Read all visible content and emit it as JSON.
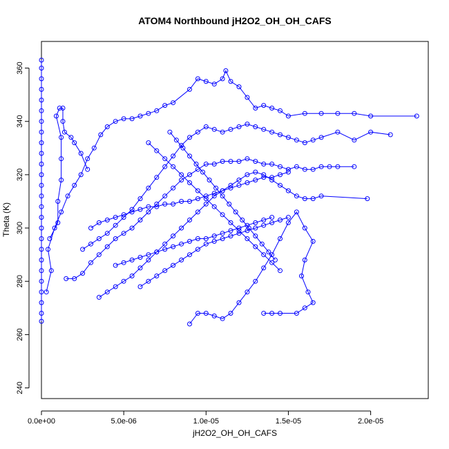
{
  "chart_data": {
    "type": "line",
    "title": "ATOM4 Northbound jH2O2_OH_OH_CAFS",
    "xlabel": "jH2O2_OH_OH_CAFS",
    "ylabel": "Theta (K)",
    "xlim": [
      0,
      2.35e-05
    ],
    "ylim": [
      236,
      370
    ],
    "x_ticks": [
      0,
      5e-06,
      1e-05,
      1.5e-05,
      2e-05
    ],
    "x_tick_labels": [
      "0.0e+00",
      "5.0e-06",
      "1.0e-05",
      "1.5e-05",
      "2.0e-05"
    ],
    "y_ticks": [
      240,
      260,
      280,
      300,
      320,
      340,
      360
    ],
    "y_tick_labels": [
      "240",
      "260",
      "280",
      "300",
      "320",
      "340",
      "360"
    ],
    "marker": "open-circle",
    "color": "#0000ff",
    "grid": false,
    "series": [
      {
        "points": [
          [
            0.0,
            265
          ],
          [
            0.0,
            268
          ],
          [
            0.0,
            272
          ],
          [
            0.0,
            276
          ],
          [
            0.0,
            280
          ],
          [
            0.0,
            284
          ],
          [
            0.0,
            288
          ],
          [
            0.0,
            292
          ],
          [
            0.0,
            296
          ],
          [
            0.0,
            300
          ],
          [
            0.0,
            304
          ],
          [
            0.0,
            308
          ],
          [
            0.0,
            312
          ],
          [
            0.0,
            316
          ],
          [
            0.0,
            320
          ],
          [
            0.0,
            324
          ],
          [
            0.0,
            328
          ],
          [
            0.0,
            332
          ],
          [
            0.0,
            336
          ],
          [
            0.0,
            340
          ],
          [
            0.0,
            344
          ],
          [
            0.0,
            348
          ],
          [
            0.0,
            352
          ],
          [
            0.0,
            356
          ],
          [
            0.0,
            360
          ],
          [
            0.0,
            363
          ]
        ]
      },
      {
        "points": [
          [
            3e-07,
            276
          ],
          [
            6e-07,
            284
          ],
          [
            4e-07,
            292
          ],
          [
            8e-07,
            300
          ],
          [
            1.2e-06,
            306
          ],
          [
            1.6e-06,
            312
          ],
          [
            2e-06,
            316
          ],
          [
            2.4e-06,
            320
          ],
          [
            2.8e-06,
            326
          ],
          [
            3.2e-06,
            330
          ],
          [
            3.6e-06,
            335
          ],
          [
            4e-06,
            338
          ],
          [
            4.5e-06,
            340
          ],
          [
            5e-06,
            341
          ],
          [
            5.5e-06,
            341
          ],
          [
            6e-06,
            342
          ],
          [
            6.5e-06,
            343
          ],
          [
            7e-06,
            344
          ],
          [
            7.5e-06,
            346
          ],
          [
            8e-06,
            347
          ],
          [
            9e-06,
            352
          ],
          [
            9.5e-06,
            356
          ],
          [
            1e-05,
            355
          ],
          [
            1.05e-05,
            354
          ],
          [
            1.1e-05,
            356
          ],
          [
            1.12e-05,
            359
          ],
          [
            1.15e-05,
            355
          ],
          [
            1.2e-05,
            353
          ],
          [
            1.25e-05,
            349
          ],
          [
            1.3e-05,
            345
          ],
          [
            1.35e-05,
            346
          ],
          [
            1.4e-05,
            345
          ],
          [
            1.45e-05,
            344
          ],
          [
            1.5e-05,
            342
          ],
          [
            1.6e-05,
            343
          ],
          [
            1.7e-05,
            343
          ],
          [
            1.8e-05,
            343
          ],
          [
            1.9e-05,
            343
          ],
          [
            2e-05,
            342
          ],
          [
            2.28e-05,
            342
          ]
        ]
      },
      {
        "points": [
          [
            5e-07,
            296
          ],
          [
            1e-06,
            302
          ],
          [
            1e-06,
            310
          ],
          [
            1.2e-06,
            318
          ],
          [
            1.2e-06,
            326
          ],
          [
            1.2e-06,
            334
          ],
          [
            9e-07,
            342
          ],
          [
            1.1e-06,
            345
          ],
          [
            1.3e-06,
            345
          ],
          [
            1.3e-06,
            340
          ],
          [
            1.4e-06,
            336
          ],
          [
            1.8e-06,
            334
          ],
          [
            2e-06,
            332
          ],
          [
            2.4e-06,
            328
          ],
          [
            2.8e-06,
            322
          ]
        ]
      },
      {
        "points": [
          [
            1.5e-06,
            281
          ],
          [
            2e-06,
            281
          ],
          [
            2.5e-06,
            283
          ],
          [
            3e-06,
            287
          ],
          [
            3.5e-06,
            290
          ],
          [
            4e-06,
            293
          ],
          [
            4.5e-06,
            296
          ],
          [
            5e-06,
            298
          ],
          [
            5.5e-06,
            300
          ],
          [
            6e-06,
            303
          ],
          [
            6.5e-06,
            306
          ],
          [
            7e-06,
            309
          ],
          [
            7.5e-06,
            312
          ],
          [
            8e-06,
            315
          ],
          [
            8.5e-06,
            318
          ],
          [
            9e-06,
            320
          ],
          [
            9.5e-06,
            322
          ],
          [
            1e-05,
            324
          ],
          [
            1.05e-05,
            324
          ],
          [
            1.1e-05,
            325
          ],
          [
            1.15e-05,
            325
          ],
          [
            1.2e-05,
            325
          ],
          [
            1.25e-05,
            326
          ],
          [
            1.3e-05,
            325
          ],
          [
            1.35e-05,
            324
          ],
          [
            1.4e-05,
            324
          ],
          [
            1.45e-05,
            323
          ],
          [
            1.5e-05,
            322
          ],
          [
            1.55e-05,
            323
          ],
          [
            1.6e-05,
            322
          ],
          [
            1.65e-05,
            322
          ],
          [
            1.7e-05,
            323
          ],
          [
            1.75e-05,
            323
          ],
          [
            1.8e-05,
            323
          ],
          [
            1.9e-05,
            323
          ]
        ]
      },
      {
        "points": [
          [
            3.5e-06,
            274
          ],
          [
            4e-06,
            276
          ],
          [
            4.5e-06,
            278
          ],
          [
            5e-06,
            280
          ],
          [
            5.5e-06,
            282
          ],
          [
            6e-06,
            285
          ],
          [
            6.5e-06,
            288
          ],
          [
            7e-06,
            291
          ],
          [
            7.5e-06,
            294
          ],
          [
            8e-06,
            297
          ],
          [
            8.5e-06,
            300
          ],
          [
            9e-06,
            303
          ],
          [
            9.5e-06,
            306
          ],
          [
            1e-05,
            309
          ],
          [
            1.05e-05,
            312
          ],
          [
            1.1e-05,
            314
          ],
          [
            1.15e-05,
            316
          ],
          [
            1.2e-05,
            318
          ],
          [
            1.25e-05,
            320
          ],
          [
            1.3e-05,
            321
          ],
          [
            1.35e-05,
            320
          ],
          [
            1.4e-05,
            318
          ],
          [
            1.45e-05,
            316
          ],
          [
            1.5e-05,
            314
          ],
          [
            1.55e-05,
            312
          ],
          [
            1.6e-05,
            311
          ],
          [
            1.65e-05,
            311
          ],
          [
            1.7e-05,
            312
          ],
          [
            1.98e-05,
            311
          ]
        ]
      },
      {
        "points": [
          [
            9e-06,
            264
          ],
          [
            9.5e-06,
            268
          ],
          [
            1e-05,
            268
          ],
          [
            1.05e-05,
            267
          ],
          [
            1.1e-05,
            266
          ],
          [
            1.15e-05,
            268
          ],
          [
            1.2e-05,
            272
          ],
          [
            1.25e-05,
            276
          ],
          [
            1.3e-05,
            280
          ],
          [
            1.35e-05,
            285
          ],
          [
            1.4e-05,
            290
          ],
          [
            1.45e-05,
            296
          ],
          [
            1.5e-05,
            302
          ],
          [
            1.55e-05,
            306
          ],
          [
            1.6e-05,
            300
          ],
          [
            1.65e-05,
            295
          ],
          [
            1.6e-05,
            288
          ],
          [
            1.58e-05,
            282
          ],
          [
            1.62e-05,
            276
          ],
          [
            1.65e-05,
            272
          ],
          [
            1.6e-05,
            270
          ],
          [
            1.55e-05,
            268
          ],
          [
            1.45e-05,
            268
          ],
          [
            1.4e-05,
            268
          ],
          [
            1.35e-05,
            268
          ]
        ]
      },
      {
        "points": [
          [
            2.5e-06,
            292
          ],
          [
            3e-06,
            294
          ],
          [
            3.5e-06,
            296
          ],
          [
            4e-06,
            298
          ],
          [
            4.5e-06,
            301
          ],
          [
            5e-06,
            304
          ],
          [
            5.5e-06,
            307
          ],
          [
            6e-06,
            311
          ],
          [
            6.5e-06,
            315
          ],
          [
            7e-06,
            319
          ],
          [
            7.5e-06,
            323
          ],
          [
            8e-06,
            327
          ],
          [
            8.5e-06,
            331
          ],
          [
            9e-06,
            334
          ],
          [
            9.5e-06,
            336
          ],
          [
            1e-05,
            338
          ],
          [
            1.05e-05,
            337
          ],
          [
            1.1e-05,
            336
          ],
          [
            1.15e-05,
            337
          ],
          [
            1.2e-05,
            338
          ],
          [
            1.25e-05,
            339
          ],
          [
            1.3e-05,
            338
          ],
          [
            1.35e-05,
            337
          ],
          [
            1.4e-05,
            336
          ],
          [
            1.45e-05,
            335
          ],
          [
            1.5e-05,
            334
          ],
          [
            1.55e-05,
            333
          ],
          [
            1.6e-05,
            332
          ],
          [
            1.65e-05,
            333
          ],
          [
            1.7e-05,
            334
          ],
          [
            1.8e-05,
            336
          ],
          [
            1.9e-05,
            333
          ],
          [
            2e-05,
            336
          ],
          [
            2.12e-05,
            335
          ]
        ]
      },
      {
        "points": [
          [
            3e-06,
            300
          ],
          [
            3.5e-06,
            302
          ],
          [
            4e-06,
            303
          ],
          [
            4.5e-06,
            304
          ],
          [
            5e-06,
            305
          ],
          [
            5.5e-06,
            306
          ],
          [
            6e-06,
            307
          ],
          [
            6.5e-06,
            308
          ],
          [
            7e-06,
            308
          ],
          [
            7.5e-06,
            309
          ],
          [
            8e-06,
            309
          ],
          [
            8.5e-06,
            310
          ],
          [
            9e-06,
            310
          ],
          [
            9.5e-06,
            311
          ],
          [
            1e-05,
            312
          ],
          [
            1.05e-05,
            313
          ],
          [
            1.1e-05,
            314
          ],
          [
            1.15e-05,
            315
          ],
          [
            1.2e-05,
            316
          ],
          [
            1.25e-05,
            317
          ],
          [
            1.3e-05,
            318
          ],
          [
            1.35e-05,
            319
          ],
          [
            1.4e-05,
            319
          ],
          [
            1.45e-05,
            320
          ],
          [
            1.5e-05,
            321
          ]
        ]
      },
      {
        "points": [
          [
            6e-06,
            278
          ],
          [
            6.5e-06,
            280
          ],
          [
            7e-06,
            282
          ],
          [
            7.5e-06,
            284
          ],
          [
            8e-06,
            286
          ],
          [
            8.5e-06,
            288
          ],
          [
            9e-06,
            290
          ],
          [
            9.5e-06,
            292
          ],
          [
            1e-05,
            294
          ],
          [
            1.05e-05,
            295
          ],
          [
            1.1e-05,
            296
          ],
          [
            1.15e-05,
            297
          ],
          [
            1.2e-05,
            298
          ],
          [
            1.25e-05,
            299
          ],
          [
            1.3e-05,
            300
          ],
          [
            1.35e-05,
            301
          ],
          [
            1.4e-05,
            302
          ],
          [
            1.45e-05,
            303
          ],
          [
            1.5e-05,
            304
          ]
        ]
      },
      {
        "points": [
          [
            4.5e-06,
            286
          ],
          [
            5e-06,
            287
          ],
          [
            5.5e-06,
            288
          ],
          [
            6e-06,
            289
          ],
          [
            6.5e-06,
            290
          ],
          [
            7e-06,
            291
          ],
          [
            7.5e-06,
            292
          ],
          [
            8e-06,
            293
          ],
          [
            8.5e-06,
            294
          ],
          [
            9e-06,
            295
          ],
          [
            9.5e-06,
            296
          ],
          [
            1e-05,
            296
          ],
          [
            1.05e-05,
            297
          ],
          [
            1.1e-05,
            298
          ],
          [
            1.15e-05,
            299
          ],
          [
            1.2e-05,
            300
          ],
          [
            1.25e-05,
            301
          ],
          [
            1.3e-05,
            302
          ],
          [
            1.35e-05,
            303
          ],
          [
            1.4e-05,
            304
          ]
        ]
      },
      {
        "points": [
          [
            6.5e-06,
            332
          ],
          [
            7e-06,
            329
          ],
          [
            7.5e-06,
            326
          ],
          [
            8e-06,
            323
          ],
          [
            8.5e-06,
            320
          ],
          [
            9e-06,
            317
          ],
          [
            9.5e-06,
            314
          ],
          [
            1e-05,
            311
          ],
          [
            1.05e-05,
            308
          ],
          [
            1.1e-05,
            305
          ],
          [
            1.15e-05,
            302
          ],
          [
            1.2e-05,
            299
          ],
          [
            1.25e-05,
            296
          ],
          [
            1.3e-05,
            293
          ],
          [
            1.35e-05,
            290
          ],
          [
            1.4e-05,
            287
          ],
          [
            1.45e-05,
            284
          ]
        ]
      },
      {
        "points": [
          [
            7.8e-06,
            336
          ],
          [
            8.2e-06,
            333
          ],
          [
            8.6e-06,
            330
          ],
          [
            9e-06,
            327
          ],
          [
            9.4e-06,
            324
          ],
          [
            9.8e-06,
            321
          ],
          [
            1.02e-05,
            318
          ],
          [
            1.06e-05,
            315
          ],
          [
            1.1e-05,
            312
          ],
          [
            1.14e-05,
            309
          ],
          [
            1.18e-05,
            306
          ],
          [
            1.22e-05,
            303
          ],
          [
            1.26e-05,
            300
          ],
          [
            1.3e-05,
            297
          ],
          [
            1.34e-05,
            294
          ],
          [
            1.38e-05,
            291
          ],
          [
            1.42e-05,
            288
          ]
        ]
      }
    ]
  }
}
